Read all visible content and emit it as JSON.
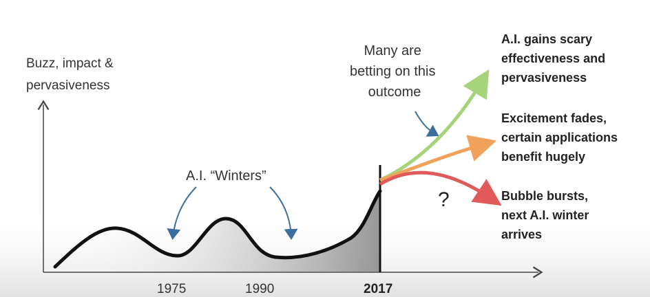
{
  "y_axis_label": [
    "Buzz, impact &",
    "pervasiveness"
  ],
  "x_ticks": [
    {
      "label": "1975",
      "bold": false
    },
    {
      "label": "1990",
      "bold": false
    },
    {
      "label": "2017",
      "bold": true
    }
  ],
  "winters_label": "A.I. “Winters”",
  "betting_label": [
    "Many are",
    "betting on this",
    "outcome"
  ],
  "question_mark": "?",
  "outcomes": [
    {
      "lines": [
        "A.I. gains scary",
        "effectiveness and",
        "pervasiveness"
      ],
      "color": "#a7d37a"
    },
    {
      "lines": [
        "Excitement fades,",
        "certain applications",
        "benefit hugely"
      ],
      "color": "#f0a25a"
    },
    {
      "lines": [
        "Bubble bursts,",
        "next A.I. winter",
        "arrives"
      ],
      "color": "#e05a5a"
    }
  ],
  "colors": {
    "curve": "#111111",
    "axis": "#444444",
    "annotation_arrow": "#3d6f9e",
    "shade": "#9a9a9a"
  }
}
